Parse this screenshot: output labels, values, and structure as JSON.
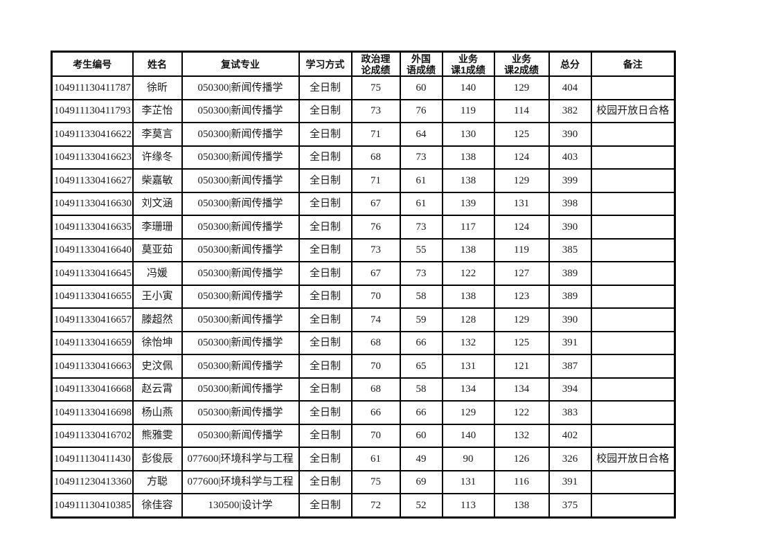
{
  "table": {
    "columns": [
      {
        "key": "candidate-id",
        "label": "考生编号"
      },
      {
        "key": "name",
        "label": "姓名"
      },
      {
        "key": "retest-major",
        "label": "复试专业"
      },
      {
        "key": "study-mode",
        "label": "学习方式"
      },
      {
        "key": "politics-score",
        "label": "政治理\n论成绩"
      },
      {
        "key": "foreign-lang-score",
        "label": "外国\n语成绩"
      },
      {
        "key": "course1-score",
        "label": "业务\n课1成绩"
      },
      {
        "key": "course2-score",
        "label": "业务\n课2成绩"
      },
      {
        "key": "total-score",
        "label": "总分"
      },
      {
        "key": "remark",
        "label": "备注"
      }
    ],
    "rows": [
      [
        "104911130411787",
        "徐昕",
        "050300|新闻传播学",
        "全日制",
        "75",
        "60",
        "140",
        "129",
        "404",
        ""
      ],
      [
        "104911130411793",
        "李芷怡",
        "050300|新闻传播学",
        "全日制",
        "73",
        "76",
        "119",
        "114",
        "382",
        "校园开放日合格"
      ],
      [
        "104911330416622",
        "李莫言",
        "050300|新闻传播学",
        "全日制",
        "71",
        "64",
        "130",
        "125",
        "390",
        ""
      ],
      [
        "104911330416623",
        "许缘冬",
        "050300|新闻传播学",
        "全日制",
        "68",
        "73",
        "138",
        "124",
        "403",
        ""
      ],
      [
        "104911330416627",
        "柴嘉敏",
        "050300|新闻传播学",
        "全日制",
        "71",
        "61",
        "138",
        "129",
        "399",
        ""
      ],
      [
        "104911330416630",
        "刘文涵",
        "050300|新闻传播学",
        "全日制",
        "67",
        "61",
        "139",
        "131",
        "398",
        ""
      ],
      [
        "104911330416635",
        "李珊珊",
        "050300|新闻传播学",
        "全日制",
        "76",
        "73",
        "117",
        "124",
        "390",
        ""
      ],
      [
        "104911330416640",
        "莫亚茹",
        "050300|新闻传播学",
        "全日制",
        "73",
        "55",
        "138",
        "119",
        "385",
        ""
      ],
      [
        "104911330416645",
        "冯媛",
        "050300|新闻传播学",
        "全日制",
        "67",
        "73",
        "122",
        "127",
        "389",
        ""
      ],
      [
        "104911330416655",
        "王小寅",
        "050300|新闻传播学",
        "全日制",
        "70",
        "58",
        "138",
        "123",
        "389",
        ""
      ],
      [
        "104911330416657",
        "滕超然",
        "050300|新闻传播学",
        "全日制",
        "74",
        "59",
        "128",
        "129",
        "390",
        ""
      ],
      [
        "104911330416659",
        "徐怡坤",
        "050300|新闻传播学",
        "全日制",
        "68",
        "66",
        "132",
        "125",
        "391",
        ""
      ],
      [
        "104911330416663",
        "史汶佩",
        "050300|新闻传播学",
        "全日制",
        "70",
        "65",
        "131",
        "121",
        "387",
        ""
      ],
      [
        "104911330416668",
        "赵云霄",
        "050300|新闻传播学",
        "全日制",
        "68",
        "58",
        "134",
        "134",
        "394",
        ""
      ],
      [
        "104911330416698",
        "杨山燕",
        "050300|新闻传播学",
        "全日制",
        "66",
        "66",
        "129",
        "122",
        "383",
        ""
      ],
      [
        "104911330416702",
        "熊雅雯",
        "050300|新闻传播学",
        "全日制",
        "70",
        "60",
        "140",
        "132",
        "402",
        ""
      ],
      [
        "104911130411430",
        "彭俊辰",
        "077600|环境科学与工程",
        "全日制",
        "61",
        "49",
        "90",
        "126",
        "326",
        "校园开放日合格"
      ],
      [
        "104911230413360",
        "方聪",
        "077600|环境科学与工程",
        "全日制",
        "75",
        "69",
        "131",
        "116",
        "391",
        ""
      ],
      [
        "104911130410385",
        "徐佳容",
        "130500|设计学",
        "全日制",
        "72",
        "52",
        "113",
        "138",
        "375",
        ""
      ]
    ]
  },
  "colors": {
    "page_background": "#ffffff",
    "border": "#000000",
    "text": "#1a1a1a"
  }
}
